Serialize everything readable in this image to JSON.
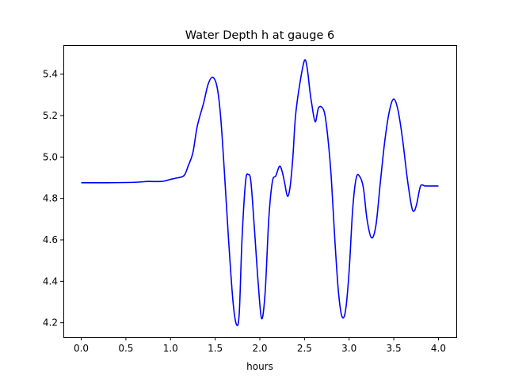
{
  "chart_data": {
    "type": "line",
    "title": "Water Depth h at gauge 6",
    "xlabel": "hours",
    "ylabel": "",
    "xlim": [
      -0.2,
      4.2
    ],
    "ylim": [
      4.13,
      5.54
    ],
    "xticks": [
      0.0,
      0.5,
      1.0,
      1.5,
      2.0,
      2.5,
      3.0,
      3.5,
      4.0
    ],
    "xtick_labels": [
      "0.0",
      "0.5",
      "1.0",
      "1.5",
      "2.0",
      "2.5",
      "3.0",
      "3.5",
      "4.0"
    ],
    "yticks": [
      4.2,
      4.4,
      4.6,
      4.8,
      5.0,
      5.2,
      5.4
    ],
    "ytick_labels": [
      "4.2",
      "4.4",
      "4.6",
      "4.8",
      "5.0",
      "5.2",
      "5.4"
    ],
    "grid": false,
    "series": [
      {
        "color": "#0000ff",
        "x": [
          0.0,
          0.3,
          0.6,
          0.75,
          0.9,
          1.0,
          1.05,
          1.15,
          1.2,
          1.25,
          1.3,
          1.37,
          1.42,
          1.47,
          1.52,
          1.56,
          1.6,
          1.65,
          1.7,
          1.74,
          1.77,
          1.8,
          1.84,
          1.87,
          1.9,
          1.94,
          1.98,
          2.02,
          2.06,
          2.1,
          2.14,
          2.18,
          2.22,
          2.25,
          2.28,
          2.31,
          2.34,
          2.37,
          2.4,
          2.45,
          2.5,
          2.53,
          2.56,
          2.58,
          2.62,
          2.66,
          2.72,
          2.76,
          2.8,
          2.84,
          2.88,
          2.92,
          2.96,
          3.0,
          3.04,
          3.08,
          3.12,
          3.16,
          3.2,
          3.25,
          3.3,
          3.35,
          3.4,
          3.45,
          3.5,
          3.55,
          3.6,
          3.65,
          3.7,
          3.73,
          3.76,
          3.8,
          3.85,
          3.9,
          3.93,
          3.96,
          4.0
        ],
        "y": [
          4.876,
          4.876,
          4.878,
          4.882,
          4.882,
          4.892,
          4.897,
          4.91,
          4.96,
          5.02,
          5.15,
          5.26,
          5.35,
          5.385,
          5.34,
          5.2,
          4.95,
          4.6,
          4.3,
          4.19,
          4.25,
          4.6,
          4.88,
          4.915,
          4.88,
          4.65,
          4.4,
          4.22,
          4.35,
          4.7,
          4.88,
          4.91,
          4.955,
          4.93,
          4.87,
          4.81,
          4.86,
          5.0,
          5.2,
          5.36,
          5.466,
          5.43,
          5.32,
          5.26,
          5.17,
          5.24,
          5.22,
          5.1,
          4.9,
          4.6,
          4.35,
          4.23,
          4.26,
          4.45,
          4.75,
          4.9,
          4.905,
          4.85,
          4.7,
          4.61,
          4.67,
          4.88,
          5.08,
          5.22,
          5.28,
          5.22,
          5.08,
          4.9,
          4.76,
          4.74,
          4.78,
          4.86,
          4.86,
          4.86,
          4.86,
          4.86,
          4.86
        ]
      }
    ]
  }
}
